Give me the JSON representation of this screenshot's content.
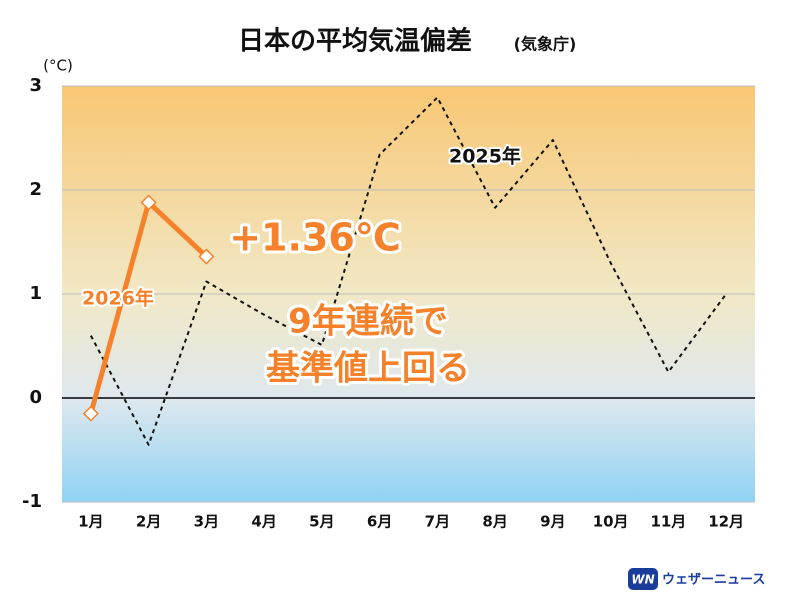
{
  "chart_data": {
    "type": "line",
    "title": "日本の平均気温偏差",
    "subtitle": "(気象庁)",
    "y_label": "(°C)",
    "categories": [
      "1月",
      "2月",
      "3月",
      "4月",
      "5月",
      "6月",
      "7月",
      "8月",
      "9月",
      "10月",
      "11月",
      "12月"
    ],
    "series": [
      {
        "name": "2025年",
        "color": "#111111",
        "dashed": true,
        "values": [
          0.6,
          -0.45,
          1.12,
          0.8,
          0.51,
          2.34,
          2.89,
          1.83,
          2.48,
          1.3,
          0.25,
          1.0
        ]
      },
      {
        "name": "2026年",
        "color": "#f5822a",
        "dashed": false,
        "values": [
          -0.15,
          1.88,
          1.36,
          null,
          null,
          null,
          null,
          null,
          null,
          null,
          null,
          null
        ]
      }
    ],
    "ylim": [
      -1,
      3
    ],
    "yticks": [
      -1,
      0,
      1,
      2,
      3
    ],
    "grid": true,
    "annotations": [
      "+1.36℃",
      "9年連続で",
      "基準値上回る"
    ],
    "logo": {
      "mark": "WN",
      "text": "ウェザーニュース"
    }
  }
}
